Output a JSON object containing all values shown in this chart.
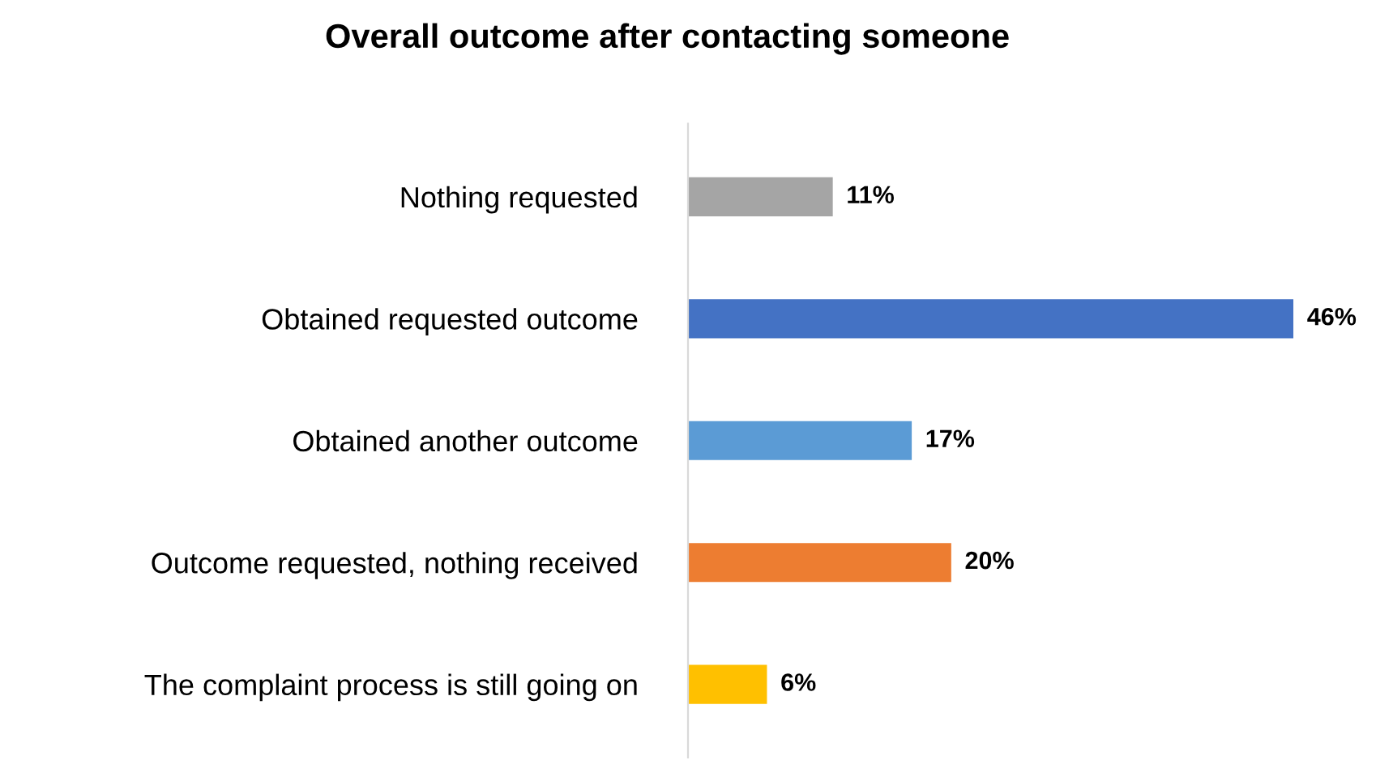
{
  "chart_data": {
    "type": "bar",
    "orientation": "horizontal",
    "title": "Overall outcome after contacting someone",
    "categories": [
      "Nothing requested",
      "Obtained requested outcome",
      "Obtained another outcome",
      "Outcome requested, nothing received",
      "The complaint process is still going on"
    ],
    "values": [
      11,
      46,
      17,
      20,
      6
    ],
    "colors": [
      "#a5a5a5",
      "#4472c4",
      "#5b9bd5",
      "#ed7d31",
      "#ffc000"
    ],
    "value_labels": [
      "11%",
      "46%",
      "17%",
      "20%",
      "6%"
    ],
    "grid": false,
    "legend": false,
    "tick_labels": "y"
  }
}
